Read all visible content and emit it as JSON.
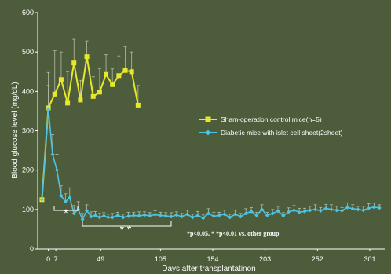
{
  "chart_data": {
    "type": "line",
    "xlabel": "Days after transplantatinon",
    "ylabel": "Blood glucose level (mg/dL)",
    "xlim": [
      -10,
      315
    ],
    "ylim": [
      0,
      600
    ],
    "xticks": [
      0,
      7,
      49,
      105,
      154,
      203,
      252,
      301
    ],
    "xtick_labels": [
      "0",
      "7",
      "49",
      "105",
      "154",
      "203",
      "252",
      "301"
    ],
    "yticks": [
      0,
      100,
      200,
      300,
      400,
      500,
      600
    ],
    "ytick_labels": [
      "0",
      "100",
      "200",
      "300",
      "400",
      "500",
      "600"
    ],
    "legend_position": "right",
    "annotation": "*p<0.05,     * *p<0.01 vs. other group",
    "star_single": "*",
    "star_double": "* *",
    "series": [
      {
        "name": "Sham-operation control mice(n=5)",
        "color": "#e8e82a",
        "marker": "square",
        "x": [
          -6,
          0,
          6,
          12,
          18,
          24,
          30,
          36,
          42,
          48,
          54,
          60,
          66,
          72,
          78,
          84
        ],
        "y": [
          125,
          358,
          393,
          430,
          370,
          472,
          378,
          488,
          387,
          398,
          443,
          417,
          440,
          453,
          450,
          365
        ],
        "err": [
          0,
          90,
          110,
          70,
          80,
          60,
          50,
          40,
          50,
          60,
          50,
          40,
          50,
          60,
          50,
          50
        ]
      },
      {
        "name": "Diabetic mice with islet cell sheet(2sheet)",
        "color": "#4fc3e0",
        "marker": "diamond",
        "x": [
          -6,
          0,
          4,
          8,
          12,
          16,
          20,
          24,
          28,
          32,
          36,
          40,
          44,
          48,
          52,
          56,
          60,
          65,
          70,
          75,
          80,
          85,
          90,
          95,
          100,
          105,
          110,
          115,
          120,
          125,
          130,
          135,
          140,
          145,
          150,
          155,
          160,
          165,
          170,
          175,
          180,
          185,
          190,
          195,
          200,
          205,
          210,
          215,
          220,
          225,
          230,
          235,
          240,
          245,
          250,
          255,
          260,
          265,
          270,
          275,
          280,
          285,
          290,
          295,
          300,
          305,
          310
        ],
        "y": [
          125,
          355,
          240,
          200,
          135,
          120,
          130,
          90,
          100,
          75,
          97,
          82,
          85,
          80,
          84,
          80,
          80,
          85,
          80,
          83,
          85,
          84,
          86,
          84,
          87,
          85,
          84,
          82,
          86,
          82,
          88,
          80,
          85,
          78,
          90,
          83,
          85,
          88,
          80,
          88,
          82,
          90,
          95,
          85,
          100,
          85,
          90,
          96,
          84,
          94,
          98,
          93,
          95,
          98,
          100,
          97,
          103,
          100,
          98,
          97,
          105,
          102,
          100,
          98,
          103,
          106,
          104
        ],
        "err": [
          0,
          60,
          50,
          40,
          25,
          20,
          25,
          20,
          20,
          15,
          15,
          12,
          10,
          10,
          8,
          8,
          10,
          8,
          8,
          10,
          8,
          10,
          8,
          8,
          10,
          8,
          8,
          10,
          8,
          8,
          10,
          8,
          10,
          8,
          12,
          10,
          8,
          10,
          8,
          10,
          8,
          12,
          10,
          8,
          12,
          8,
          10,
          12,
          8,
          10,
          12,
          10,
          8,
          10,
          12,
          8,
          10,
          12,
          10,
          8,
          12,
          10,
          8,
          10,
          12,
          10,
          8
        ]
      }
    ]
  }
}
